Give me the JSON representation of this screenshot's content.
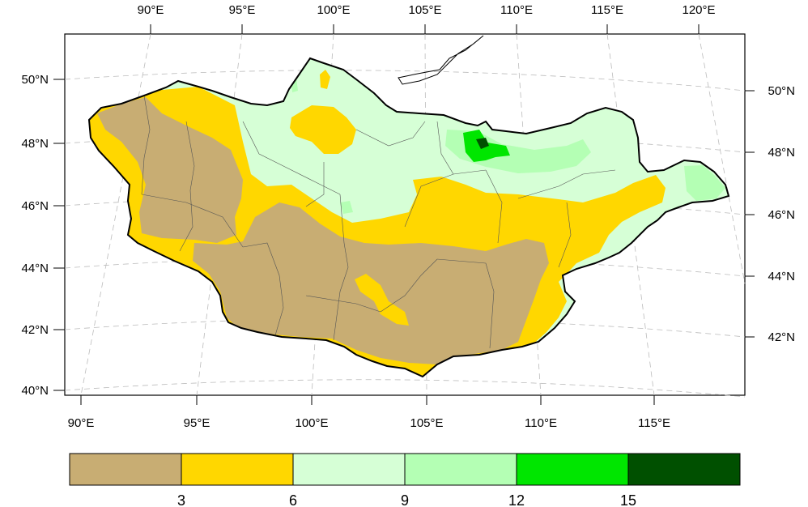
{
  "map": {
    "top_lon_labels": [
      "90°E",
      "95°E",
      "100°E",
      "105°E",
      "110°E",
      "115°E",
      "120°E"
    ],
    "bottom_lon_labels": [
      "90°E",
      "95°E",
      "100°E",
      "105°E",
      "110°E",
      "115°E"
    ],
    "left_lat_labels": [
      "50°N",
      "48°N",
      "46°N",
      "44°N",
      "42°N",
      "40°N"
    ],
    "right_lat_labels": [
      "50°N",
      "48°N",
      "46°N",
      "44°N",
      "42°N"
    ],
    "region_colors": {
      "bin_0_3": "#c8ad73",
      "bin_3_6": "#ffd700",
      "bin_6_9": "#d6ffd6",
      "bin_9_12": "#b4ffb4",
      "bin_12_15": "#00e600",
      "bin_15_plus": "#005000"
    }
  },
  "colorbar": {
    "colors": [
      "#c8ad73",
      "#ffd700",
      "#d6ffd6",
      "#b4ffb4",
      "#00e600",
      "#005000"
    ],
    "labels": [
      "3",
      "6",
      "9",
      "12",
      "15"
    ]
  }
}
